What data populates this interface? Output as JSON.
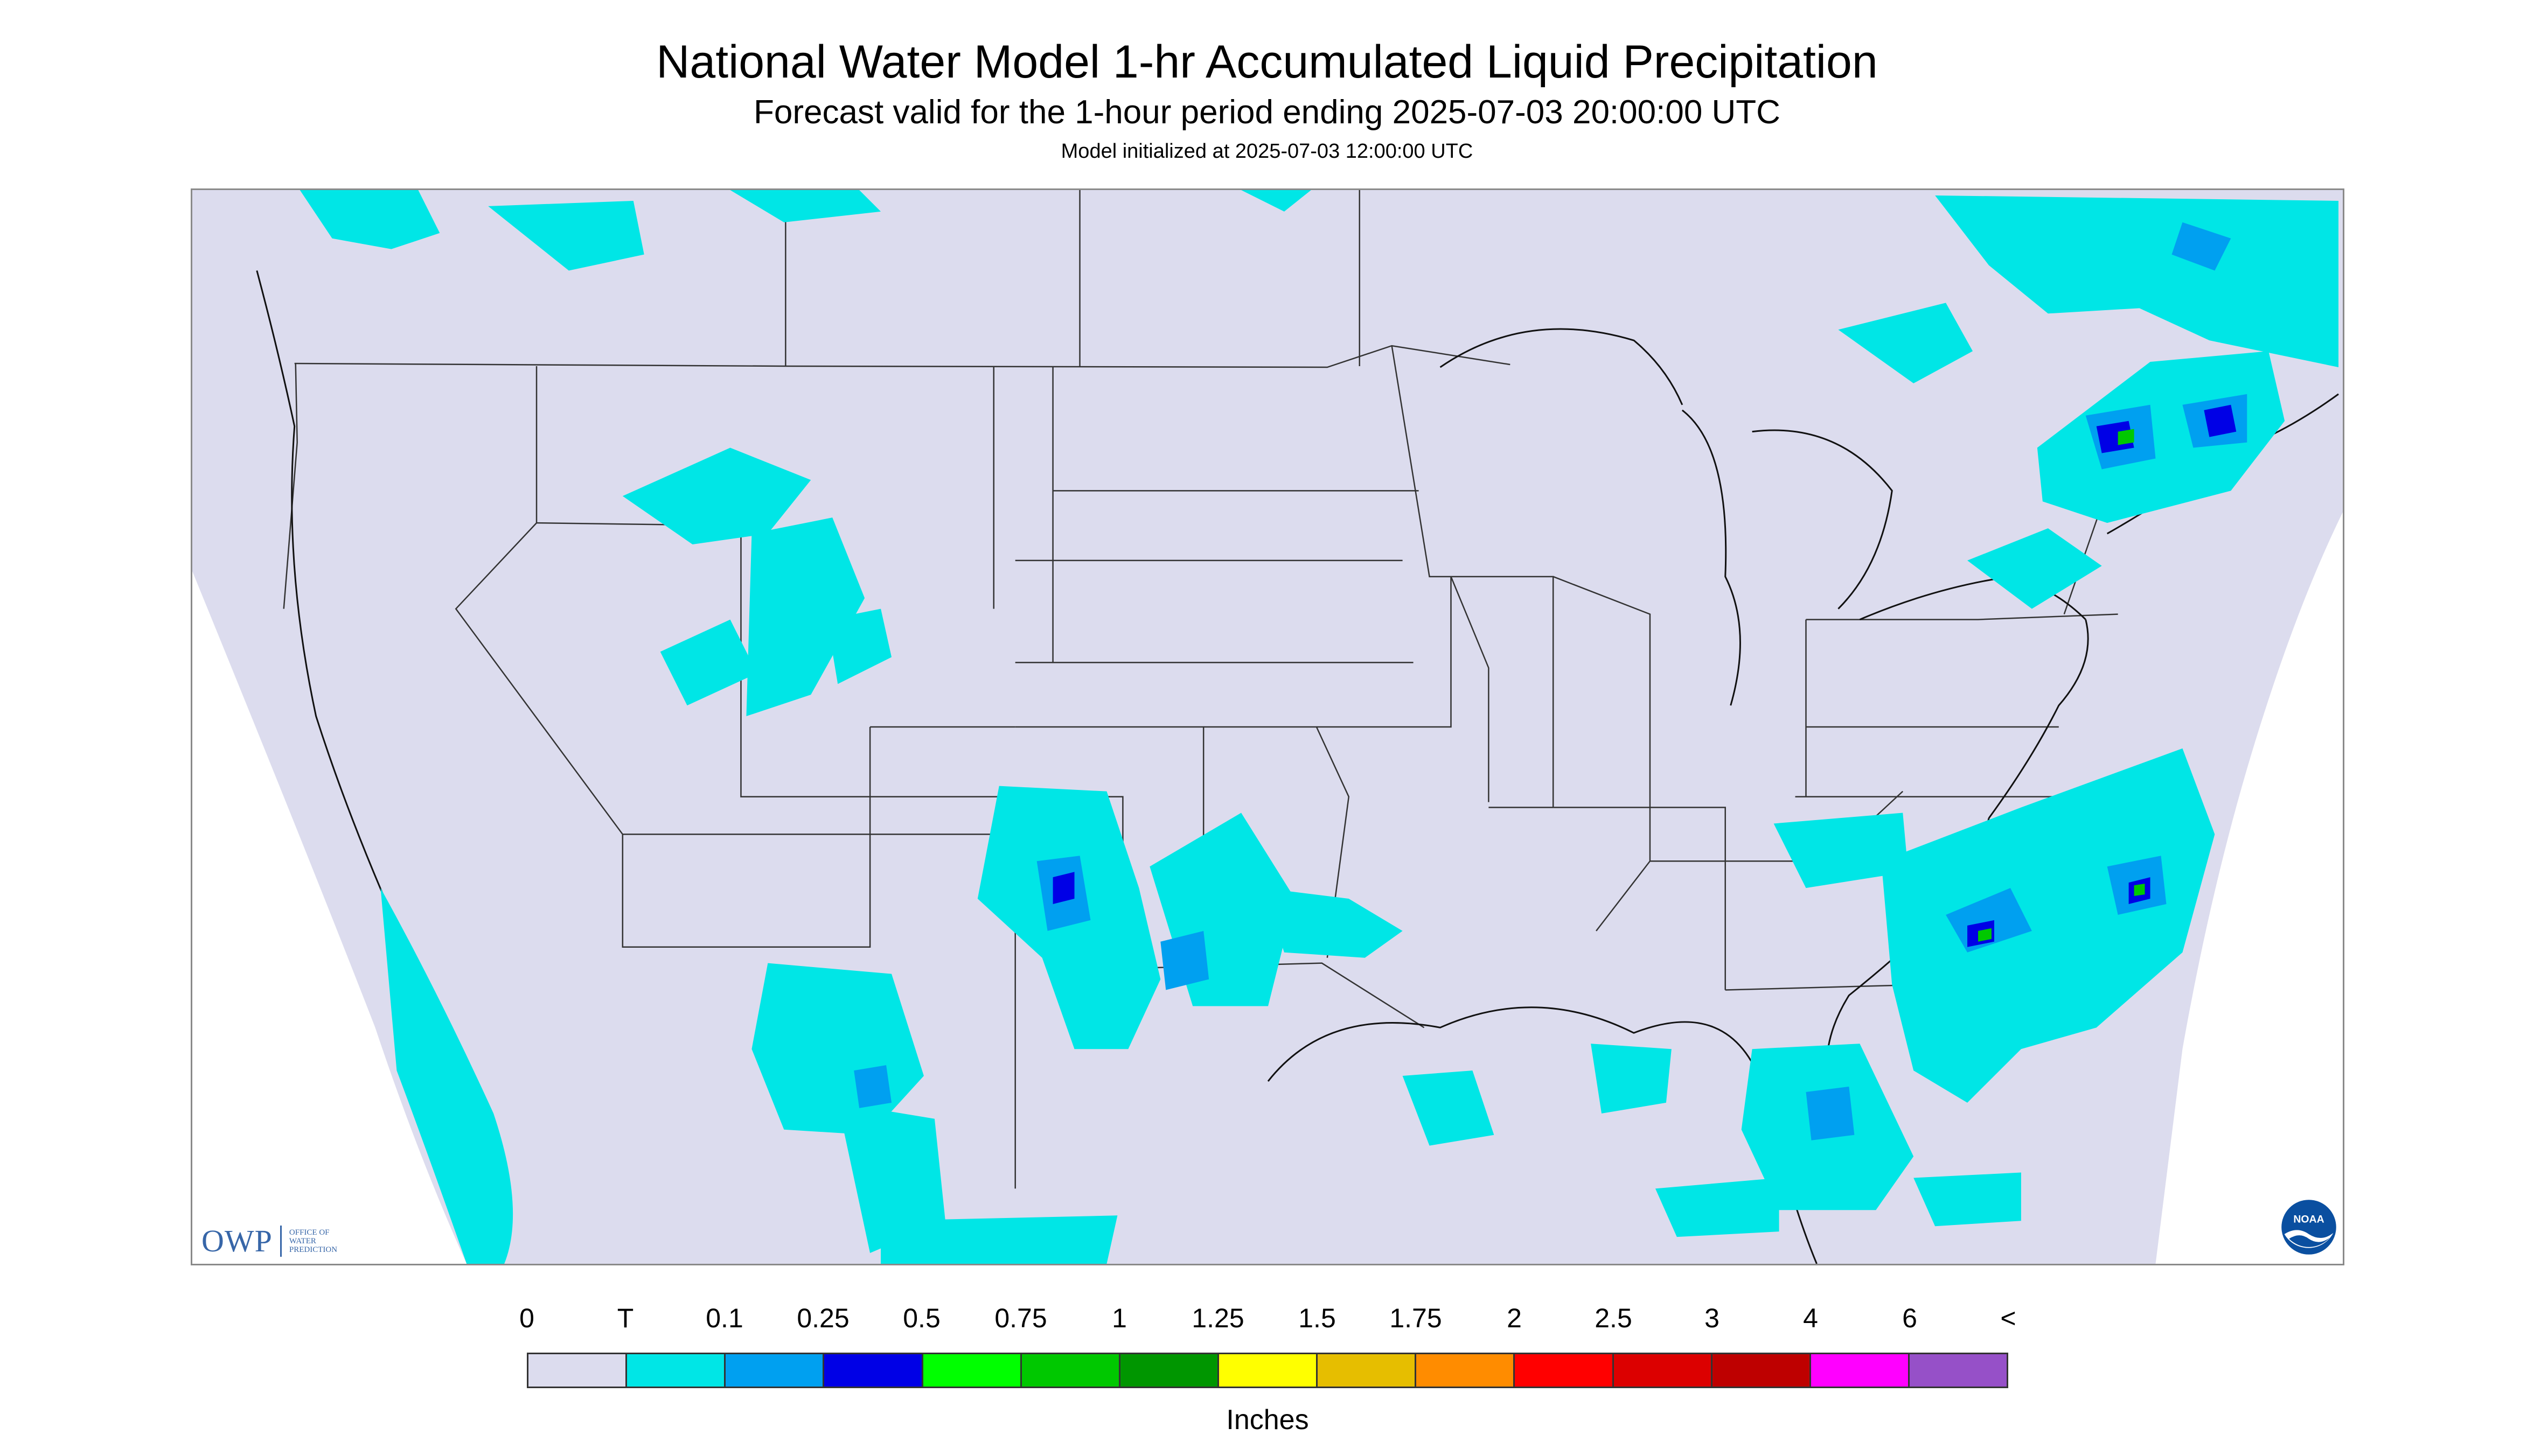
{
  "header": {
    "title": "National Water Model 1-hr Accumulated Liquid Precipitation",
    "subtitle": "Forecast valid for the 1-hour period ending 2025-07-03 20:00:00 UTC",
    "init": "Model initialized at 2025-07-03 12:00:00 UTC"
  },
  "logos": {
    "owp_mark": "OWP",
    "owp_text_1": "Office of",
    "owp_text_2": "Water",
    "owp_text_3": "Prediction",
    "noaa_mark": "NOAA"
  },
  "legend": {
    "labels": [
      "0",
      "T",
      "0.1",
      "0.25",
      "0.5",
      "0.75",
      "1",
      "1.25",
      "1.5",
      "1.75",
      "2",
      "2.5",
      "3",
      "4",
      "6",
      "<"
    ],
    "colors": [
      "#dcdcee",
      "#00e6e6",
      "#00a0f0",
      "#0000e6",
      "#00ff00",
      "#00c800",
      "#009600",
      "#ffff00",
      "#e6be00",
      "#ff8c00",
      "#ff0000",
      "#dc0000",
      "#be0000",
      "#ff00ff",
      "#9650c8"
    ],
    "units": "Inches"
  },
  "map": {
    "background_color": "#dcdcee",
    "outside_domain_color": "#ffffff",
    "precip_trace_color": "#00e6e6",
    "precip_light_color": "#00a0f0",
    "precip_moderate_color": "#0000e6",
    "precip_heavy_color": "#00c800"
  }
}
